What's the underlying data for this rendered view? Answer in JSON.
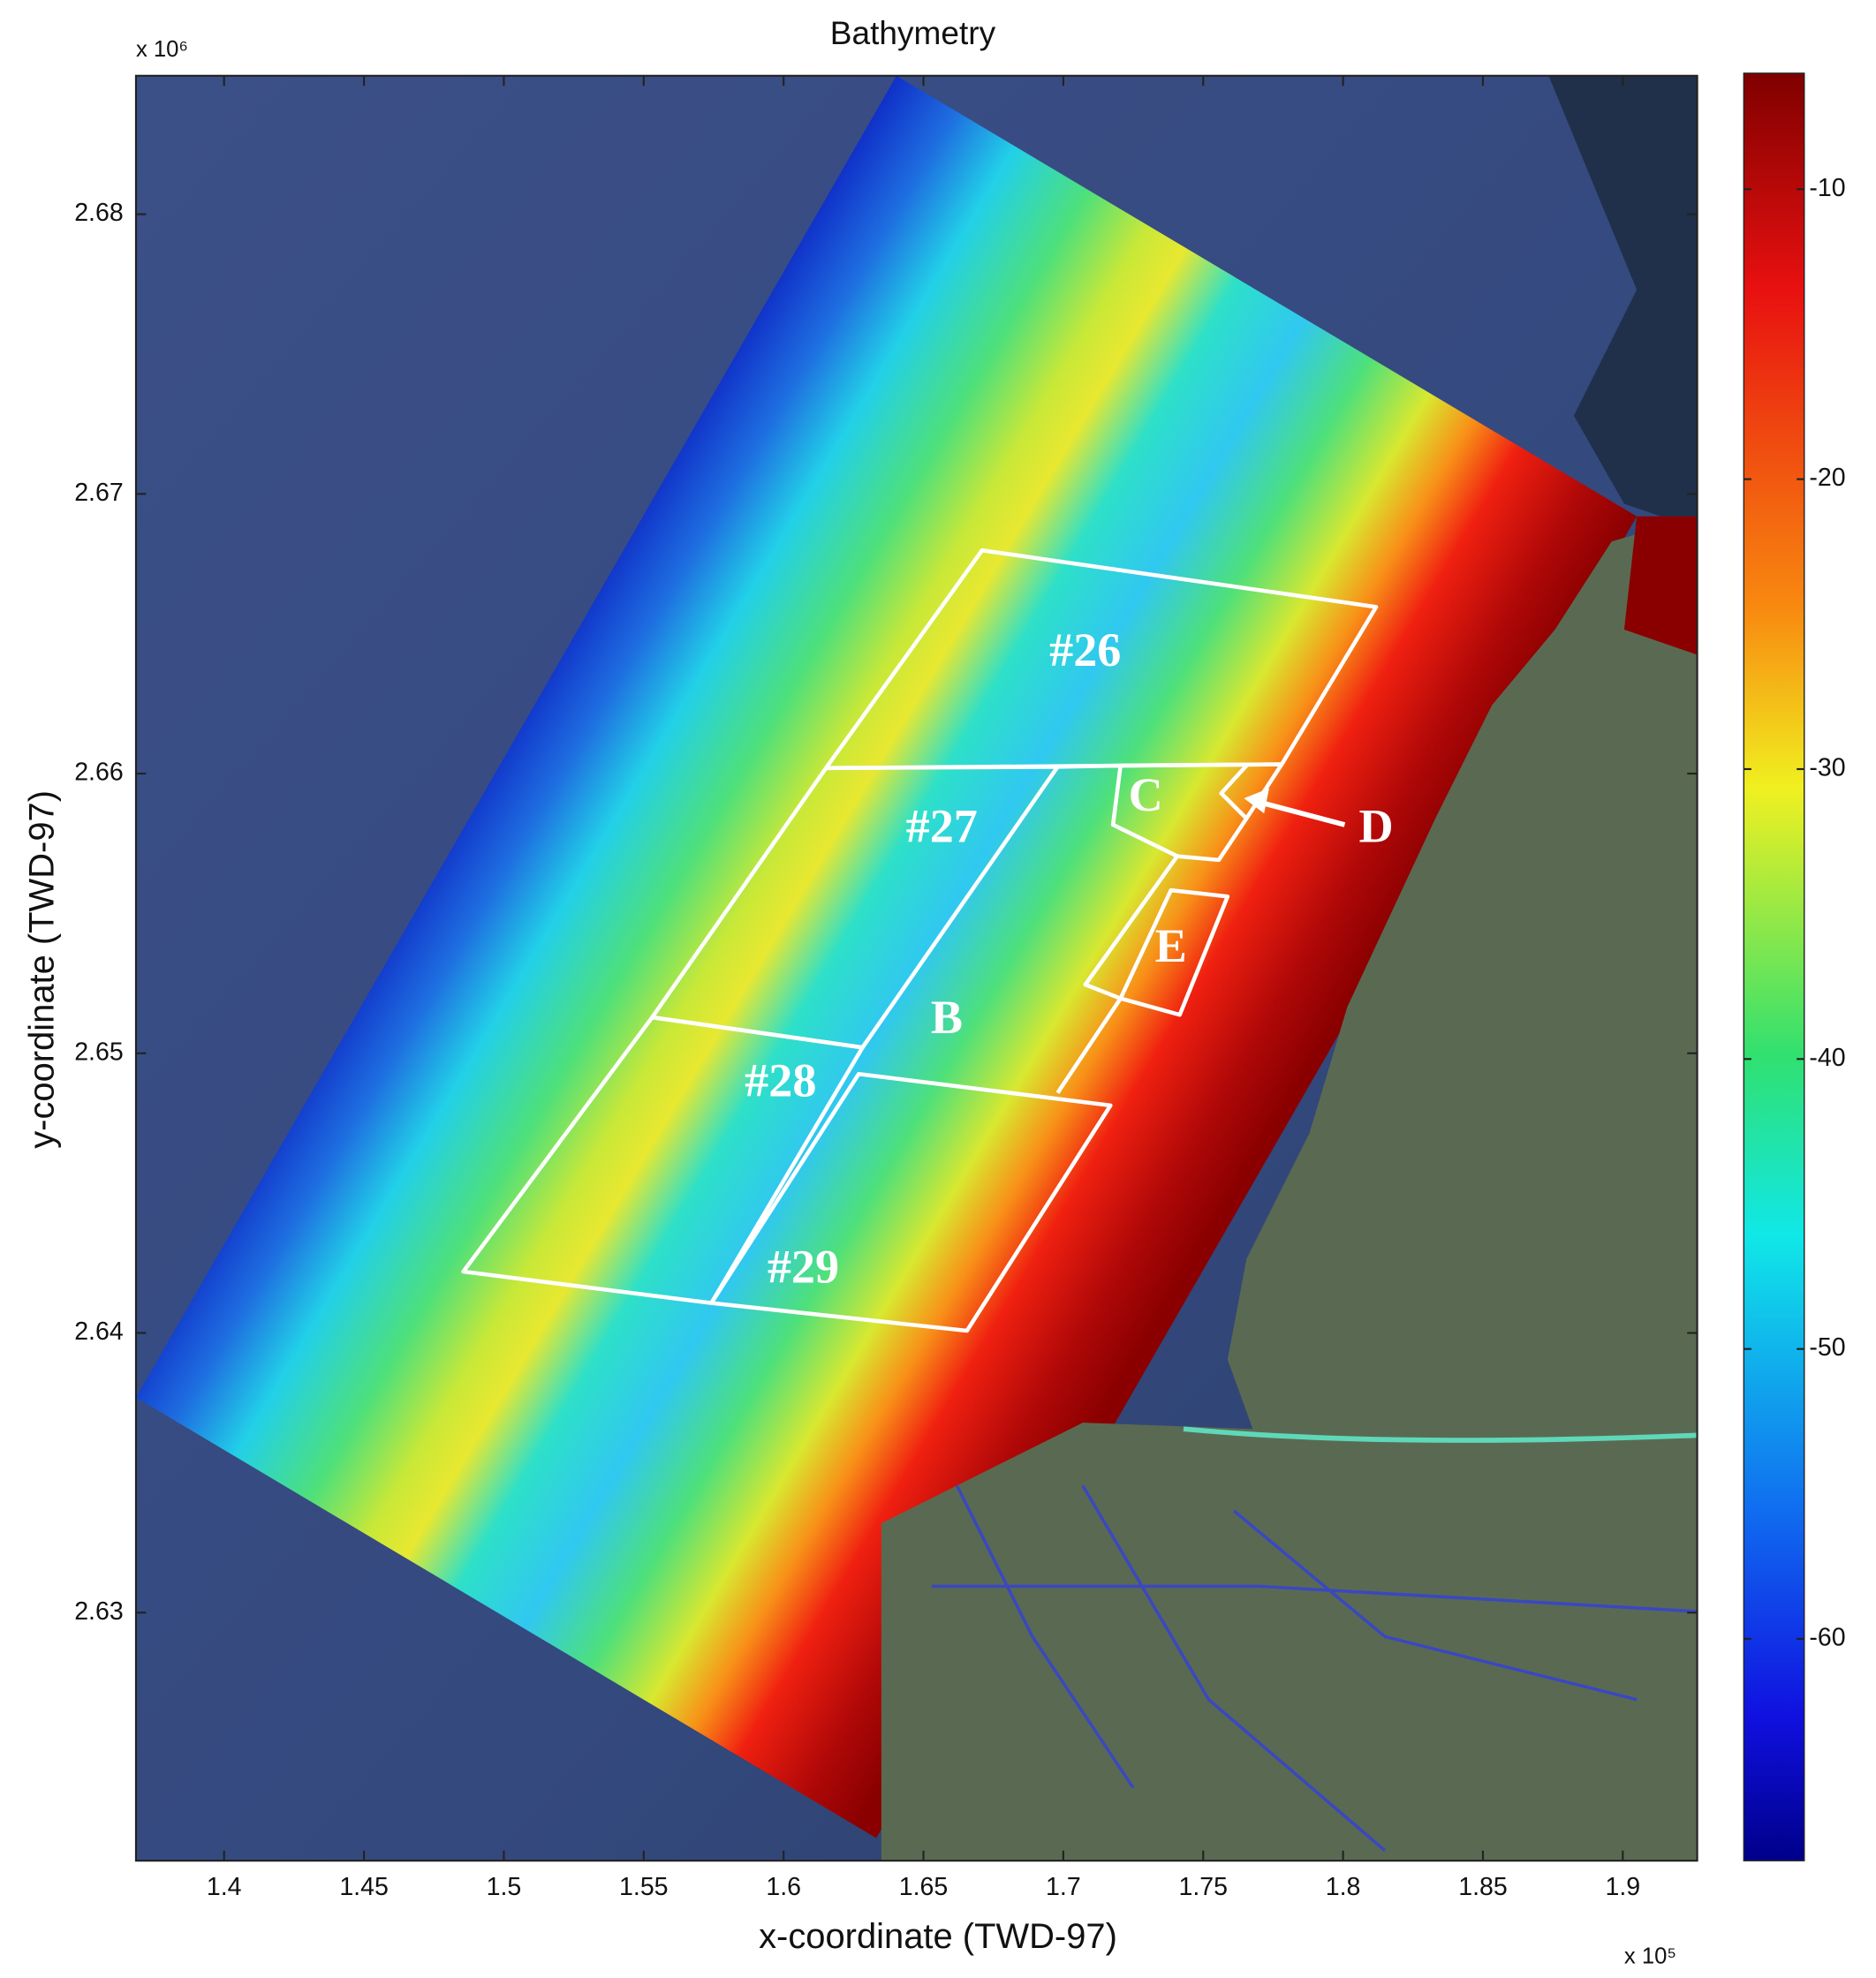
{
  "chart_data": {
    "type": "map",
    "title": "Bathymetry",
    "xlabel": "x-coordinate (TWD-97)",
    "ylabel": "y-coordinate (TWD-97)",
    "x_multiplier": "x 10⁵",
    "y_multiplier": "x 10⁶",
    "xlim": [
      1.3685,
      1.9266
    ],
    "ylim": [
      2.62113,
      2.68495
    ],
    "xticks": [
      1.4,
      1.45,
      1.5,
      1.55,
      1.6,
      1.65,
      1.7,
      1.75,
      1.8,
      1.85,
      1.9
    ],
    "yticks": [
      2.63,
      2.64,
      2.65,
      2.66,
      2.67,
      2.68
    ],
    "colorbar": {
      "lim": [
        -67.65,
        -6
      ],
      "ticks": [
        -10,
        -20,
        -30,
        -40,
        -50,
        -60
      ]
    },
    "annotations": [
      "#26",
      "#27",
      "#28",
      "#29",
      "B",
      "C",
      "D",
      "E"
    ]
  }
}
